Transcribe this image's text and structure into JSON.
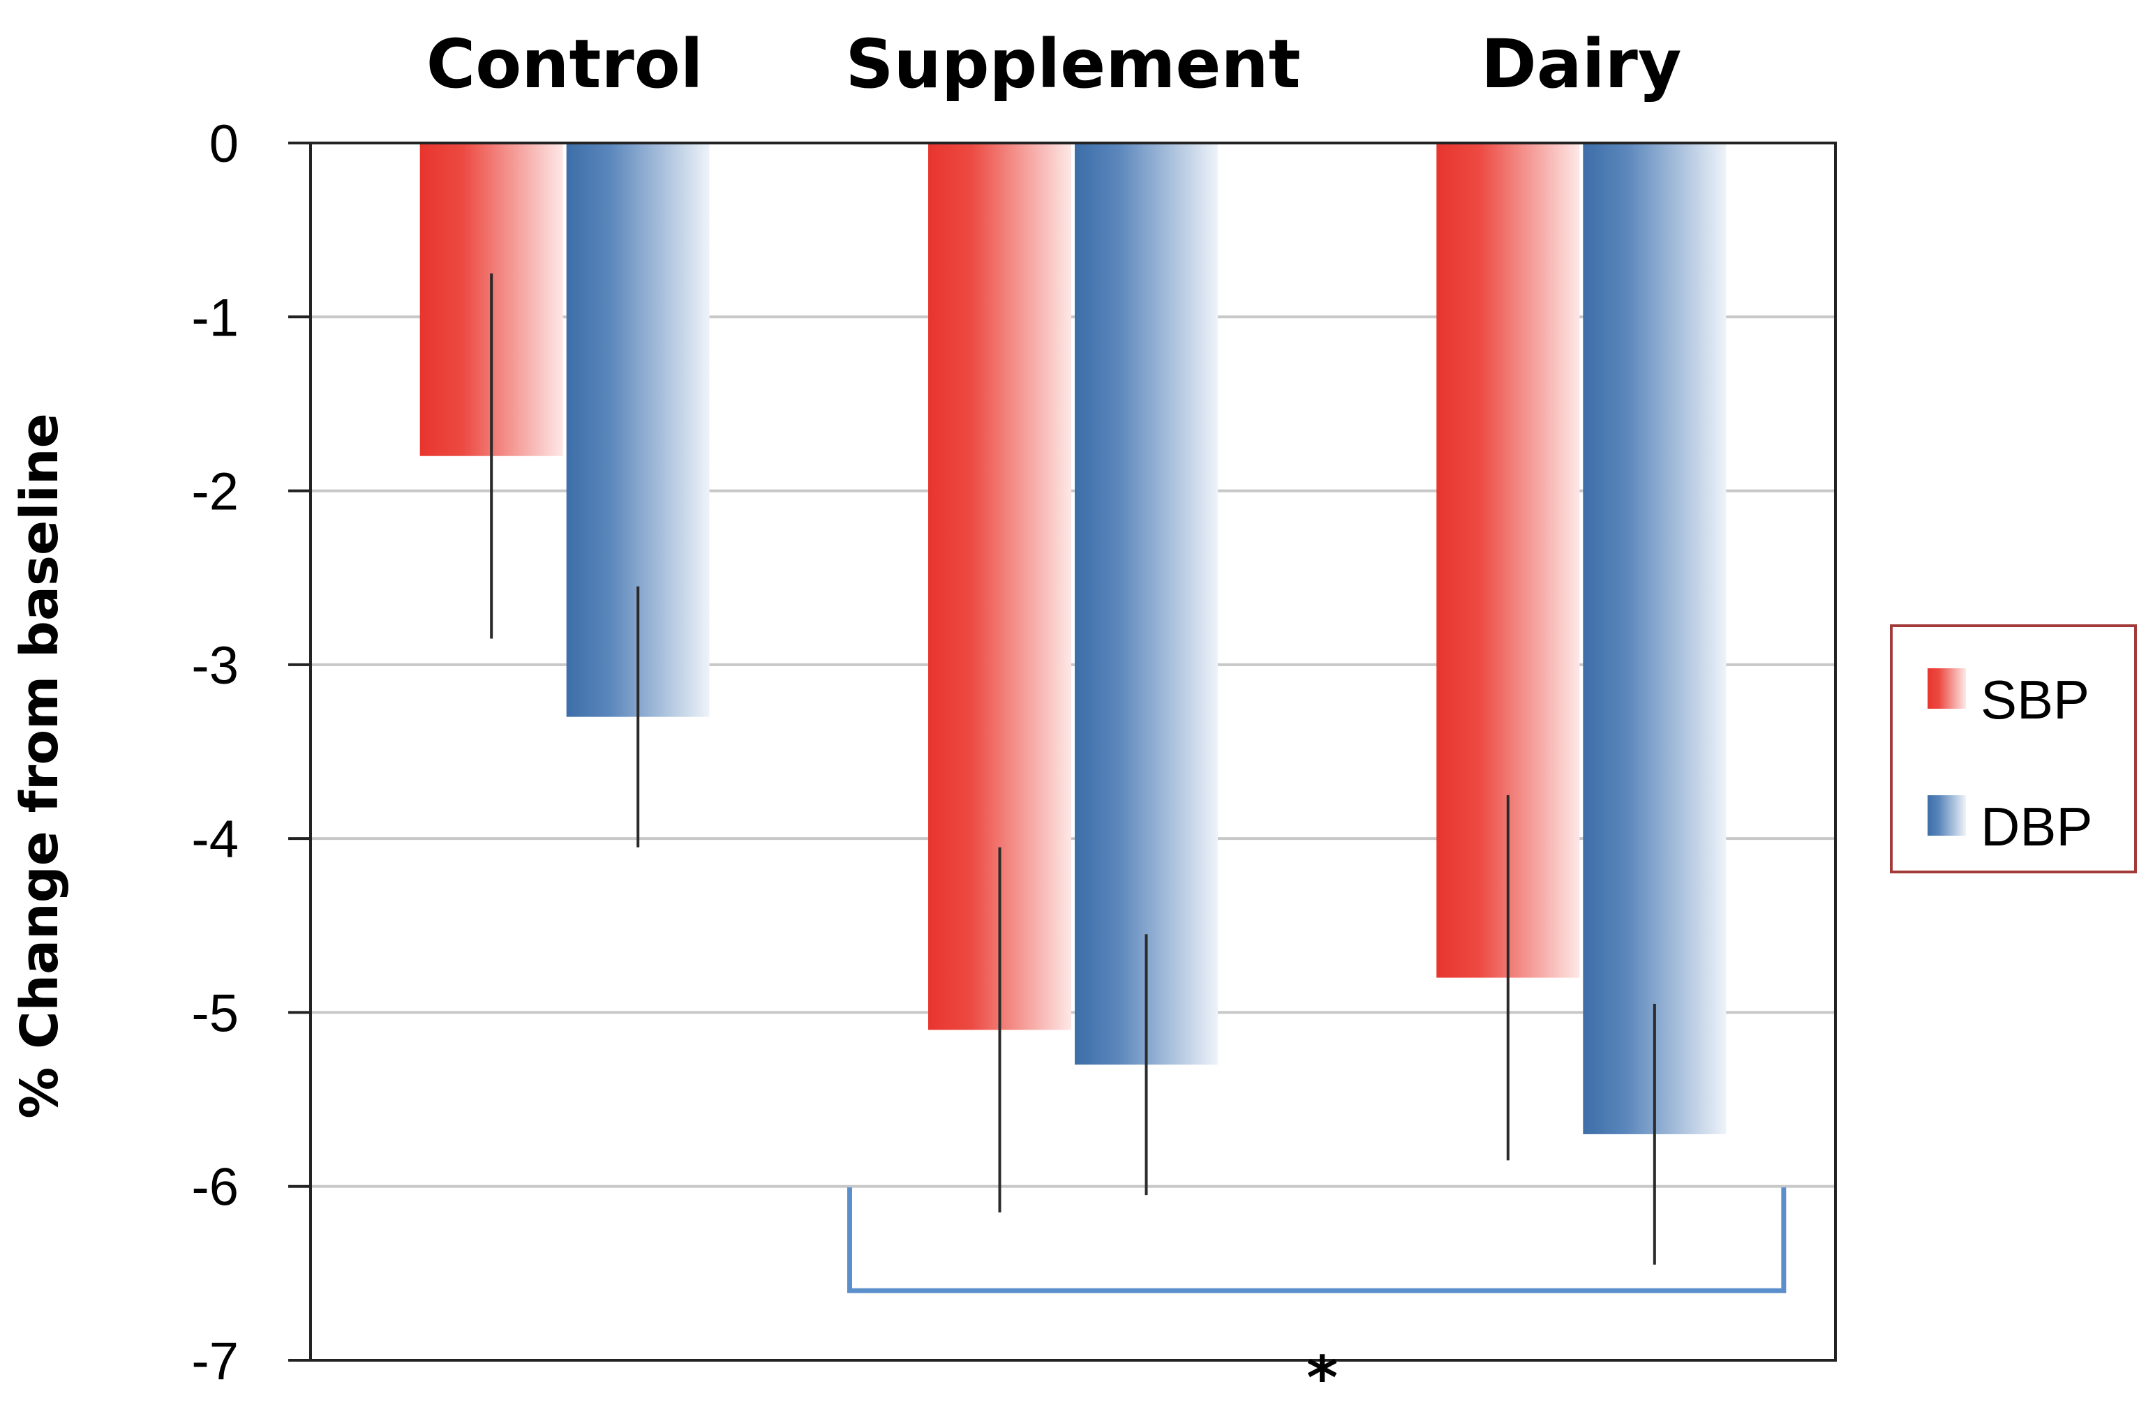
{
  "chart_data": {
    "type": "bar",
    "title": "",
    "xlabel": "",
    "ylabel": "% Change from baseline",
    "categories": [
      "Control",
      "Supplement",
      "Dairy"
    ],
    "series": [
      {
        "name": "SBP",
        "color": "#e8352e",
        "values": [
          -1.8,
          -5.1,
          -4.8
        ],
        "error_low": [
          -2.85,
          -6.15,
          -5.85
        ],
        "error_high": [
          -0.75,
          -4.05,
          -3.75
        ]
      },
      {
        "name": "DBP",
        "color": "#3d6ea8",
        "values": [
          -3.3,
          -5.3,
          -5.7
        ],
        "error_low": [
          -4.05,
          -6.05,
          -6.45
        ],
        "error_high": [
          -2.55,
          -4.55,
          -4.95
        ]
      }
    ],
    "ylim": [
      -7,
      0
    ],
    "yticks": [
      0,
      -1,
      -2,
      -3,
      -4,
      -5,
      -6,
      -7
    ],
    "ytick_labels": [
      "0",
      "-1",
      "-2",
      "-3",
      "-4",
      "-5",
      "-6",
      "-7"
    ],
    "grid": true,
    "legend_position": "right",
    "significance": {
      "label": "*",
      "from_category": "Supplement",
      "to_category": "Dairy",
      "level": -6.6,
      "color": "#5b8fcc"
    }
  }
}
